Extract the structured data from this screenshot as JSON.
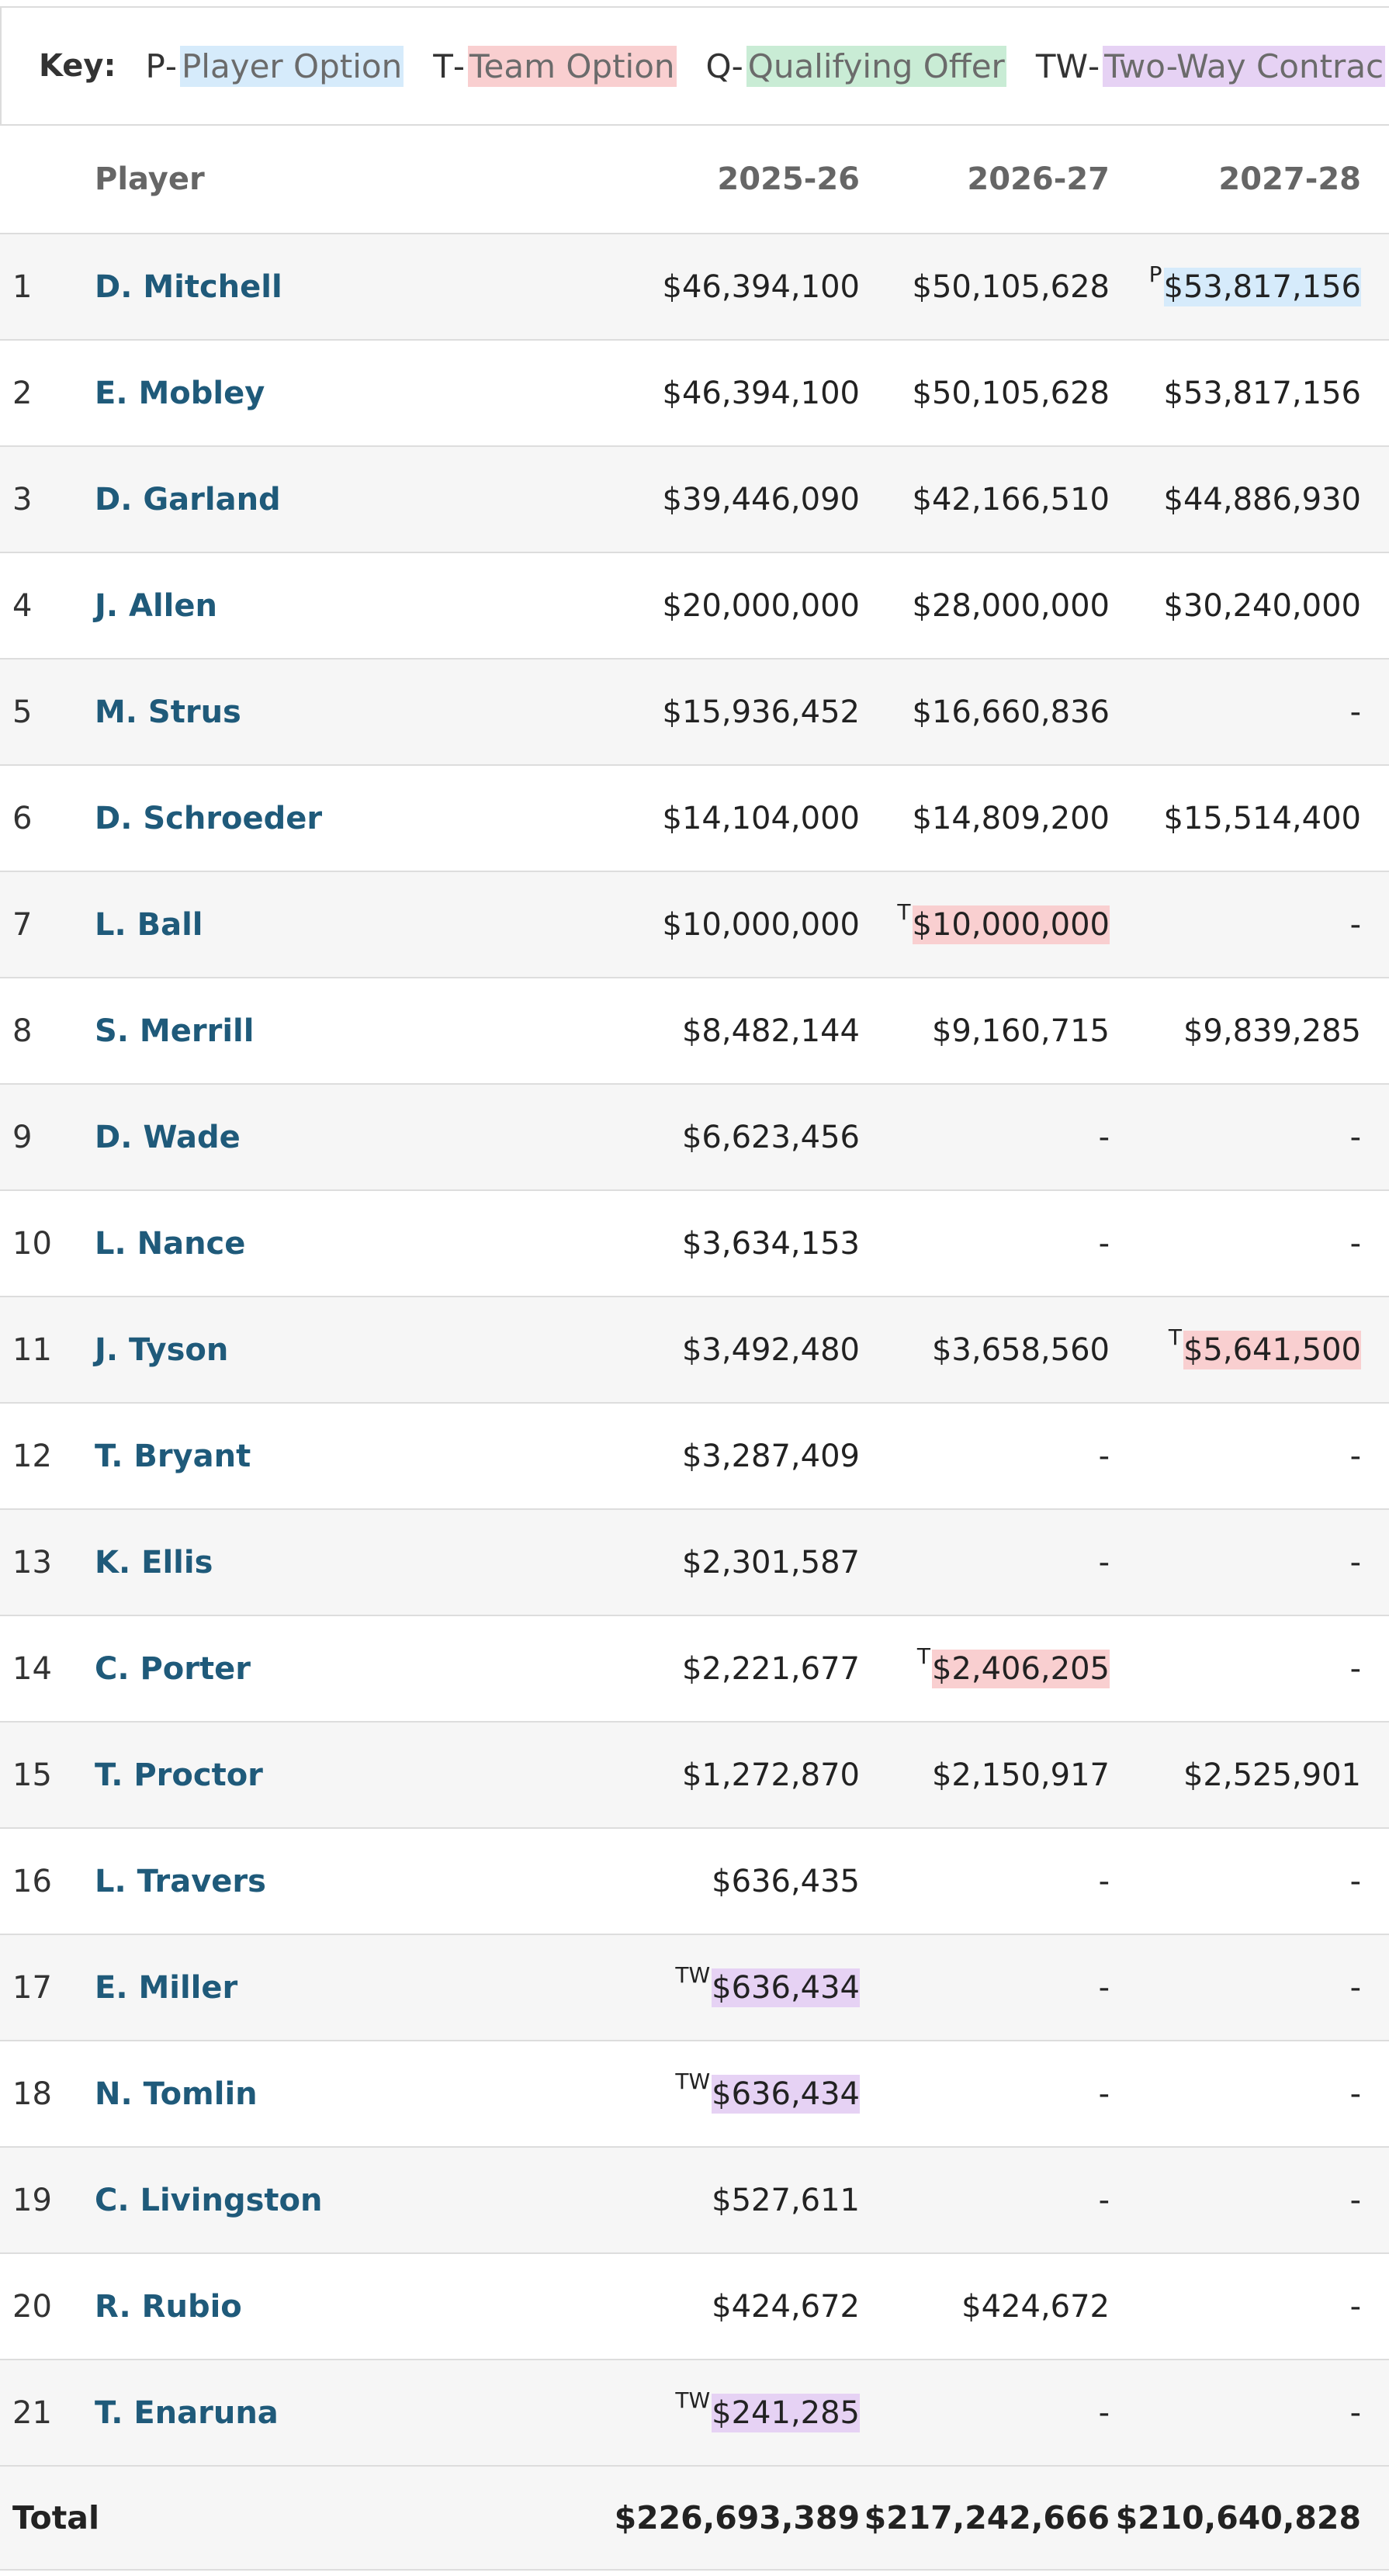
{
  "key": {
    "title": "Key:",
    "items": [
      {
        "code": "P",
        "sep": "-",
        "label": "Player Option",
        "color": "#d6ebfb"
      },
      {
        "code": "T",
        "sep": "-",
        "label": "Team Option",
        "color": "#f9cfd0"
      },
      {
        "code": "Q",
        "sep": "-",
        "label": "Qualifying Offer",
        "color": "#c9ecd5"
      },
      {
        "code": "TW",
        "sep": "-",
        "label": "Two-Way Contrac",
        "color": "#e6d2f4"
      }
    ]
  },
  "table": {
    "headers": {
      "num": "",
      "player": "Player",
      "y1": "2025-26",
      "y2": "2026-27",
      "y3": "2027-28"
    },
    "rows": [
      {
        "num": "1",
        "player": "D. Mitchell",
        "y1": {
          "v": "$46,394,100",
          "f": ""
        },
        "y2": {
          "v": "$50,105,628",
          "f": ""
        },
        "y3": {
          "v": "$53,817,156",
          "f": "P"
        }
      },
      {
        "num": "2",
        "player": "E. Mobley",
        "y1": {
          "v": "$46,394,100",
          "f": ""
        },
        "y2": {
          "v": "$50,105,628",
          "f": ""
        },
        "y3": {
          "v": "$53,817,156",
          "f": ""
        }
      },
      {
        "num": "3",
        "player": "D. Garland",
        "y1": {
          "v": "$39,446,090",
          "f": ""
        },
        "y2": {
          "v": "$42,166,510",
          "f": ""
        },
        "y3": {
          "v": "$44,886,930",
          "f": ""
        }
      },
      {
        "num": "4",
        "player": "J. Allen",
        "y1": {
          "v": "$20,000,000",
          "f": ""
        },
        "y2": {
          "v": "$28,000,000",
          "f": ""
        },
        "y3": {
          "v": "$30,240,000",
          "f": ""
        }
      },
      {
        "num": "5",
        "player": "M. Strus",
        "y1": {
          "v": "$15,936,452",
          "f": ""
        },
        "y2": {
          "v": "$16,660,836",
          "f": ""
        },
        "y3": {
          "v": "-",
          "f": ""
        }
      },
      {
        "num": "6",
        "player": "D. Schroeder",
        "y1": {
          "v": "$14,104,000",
          "f": ""
        },
        "y2": {
          "v": "$14,809,200",
          "f": ""
        },
        "y3": {
          "v": "$15,514,400",
          "f": ""
        }
      },
      {
        "num": "7",
        "player": "L. Ball",
        "y1": {
          "v": "$10,000,000",
          "f": ""
        },
        "y2": {
          "v": "$10,000,000",
          "f": "T"
        },
        "y3": {
          "v": "-",
          "f": ""
        }
      },
      {
        "num": "8",
        "player": "S. Merrill",
        "y1": {
          "v": "$8,482,144",
          "f": ""
        },
        "y2": {
          "v": "$9,160,715",
          "f": ""
        },
        "y3": {
          "v": "$9,839,285",
          "f": ""
        }
      },
      {
        "num": "9",
        "player": "D. Wade",
        "y1": {
          "v": "$6,623,456",
          "f": ""
        },
        "y2": {
          "v": "-",
          "f": ""
        },
        "y3": {
          "v": "-",
          "f": ""
        }
      },
      {
        "num": "10",
        "player": "L. Nance",
        "y1": {
          "v": "$3,634,153",
          "f": ""
        },
        "y2": {
          "v": "-",
          "f": ""
        },
        "y3": {
          "v": "-",
          "f": ""
        }
      },
      {
        "num": "11",
        "player": "J. Tyson",
        "y1": {
          "v": "$3,492,480",
          "f": ""
        },
        "y2": {
          "v": "$3,658,560",
          "f": ""
        },
        "y3": {
          "v": "$5,641,500",
          "f": "T"
        }
      },
      {
        "num": "12",
        "player": "T. Bryant",
        "y1": {
          "v": "$3,287,409",
          "f": ""
        },
        "y2": {
          "v": "-",
          "f": ""
        },
        "y3": {
          "v": "-",
          "f": ""
        }
      },
      {
        "num": "13",
        "player": "K. Ellis",
        "y1": {
          "v": "$2,301,587",
          "f": ""
        },
        "y2": {
          "v": "-",
          "f": ""
        },
        "y3": {
          "v": "-",
          "f": ""
        }
      },
      {
        "num": "14",
        "player": "C. Porter",
        "y1": {
          "v": "$2,221,677",
          "f": ""
        },
        "y2": {
          "v": "$2,406,205",
          "f": "T"
        },
        "y3": {
          "v": "-",
          "f": ""
        }
      },
      {
        "num": "15",
        "player": "T. Proctor",
        "y1": {
          "v": "$1,272,870",
          "f": ""
        },
        "y2": {
          "v": "$2,150,917",
          "f": ""
        },
        "y3": {
          "v": "$2,525,901",
          "f": ""
        }
      },
      {
        "num": "16",
        "player": "L. Travers",
        "y1": {
          "v": "$636,435",
          "f": ""
        },
        "y2": {
          "v": "-",
          "f": ""
        },
        "y3": {
          "v": "-",
          "f": ""
        }
      },
      {
        "num": "17",
        "player": "E. Miller",
        "y1": {
          "v": "$636,434",
          "f": "TW"
        },
        "y2": {
          "v": "-",
          "f": ""
        },
        "y3": {
          "v": "-",
          "f": ""
        }
      },
      {
        "num": "18",
        "player": "N. Tomlin",
        "y1": {
          "v": "$636,434",
          "f": "TW"
        },
        "y2": {
          "v": "-",
          "f": ""
        },
        "y3": {
          "v": "-",
          "f": ""
        }
      },
      {
        "num": "19",
        "player": "C. Livingston",
        "y1": {
          "v": "$527,611",
          "f": ""
        },
        "y2": {
          "v": "-",
          "f": ""
        },
        "y3": {
          "v": "-",
          "f": ""
        }
      },
      {
        "num": "20",
        "player": "R. Rubio",
        "y1": {
          "v": "$424,672",
          "f": ""
        },
        "y2": {
          "v": "$424,672",
          "f": ""
        },
        "y3": {
          "v": "-",
          "f": ""
        }
      },
      {
        "num": "21",
        "player": "T. Enaruna",
        "y1": {
          "v": "$241,285",
          "f": "TW"
        },
        "y2": {
          "v": "-",
          "f": ""
        },
        "y3": {
          "v": "-",
          "f": ""
        }
      }
    ],
    "total": {
      "label": "Total",
      "y1": "$226,693,389",
      "y2": "$217,242,666",
      "y3": "$210,640,828"
    }
  }
}
